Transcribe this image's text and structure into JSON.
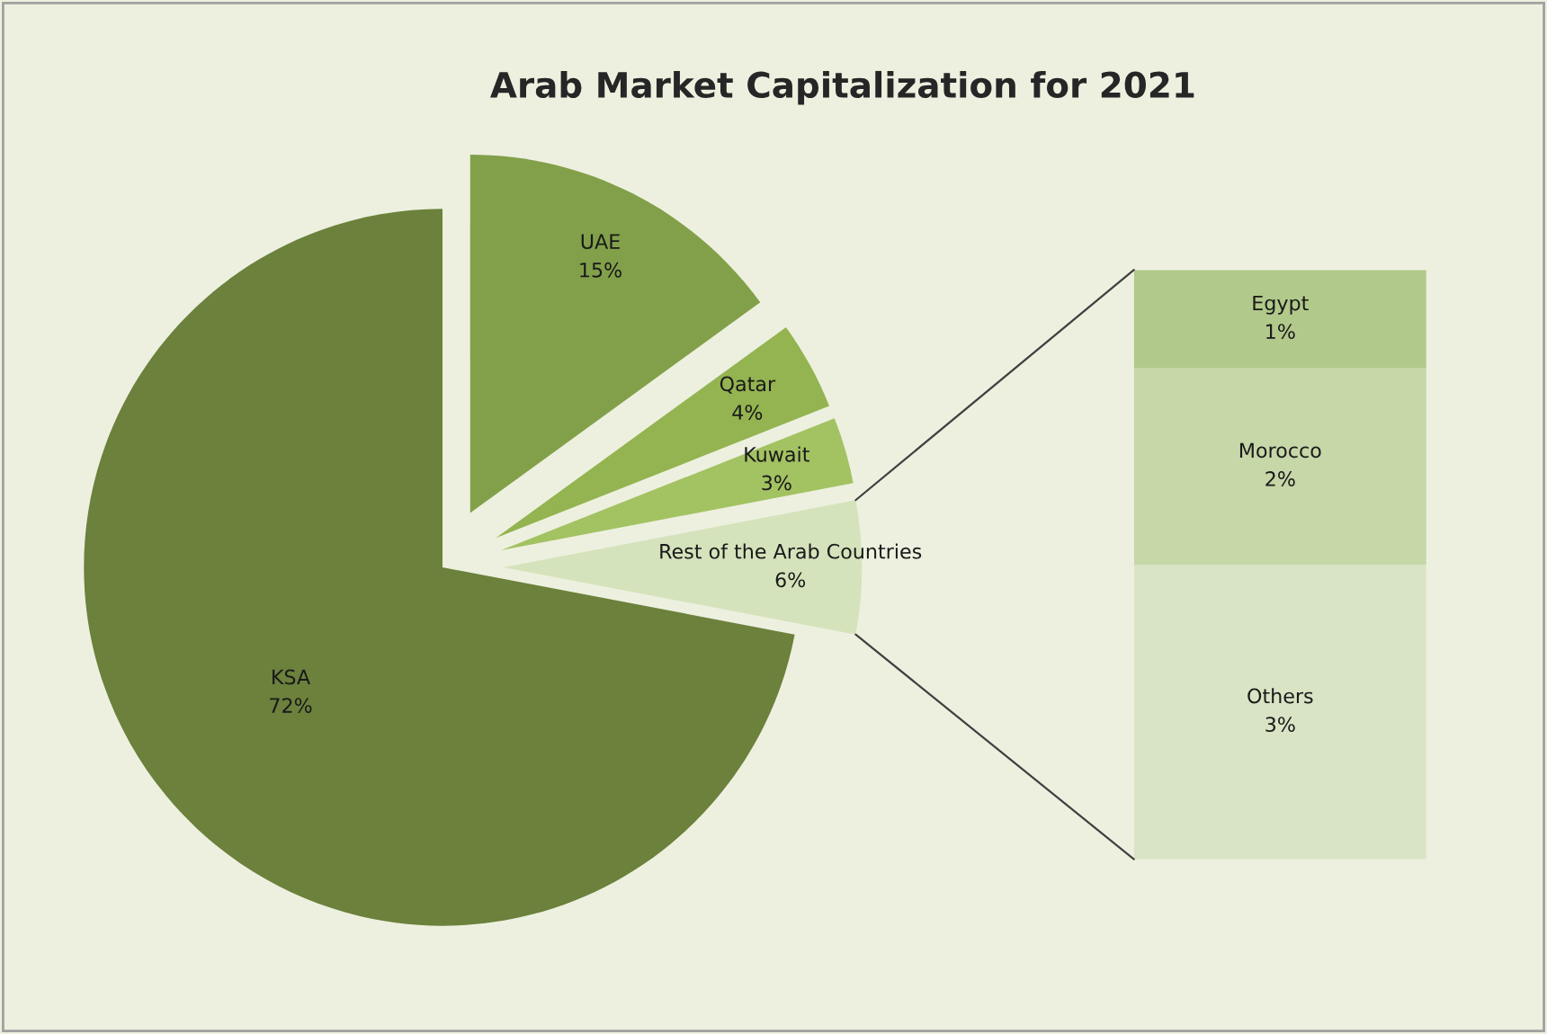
{
  "chart_data": [
    {
      "type": "pie",
      "title": "Arab Market Capitalization for 2021",
      "categories": [
        "UAE",
        "Qatar",
        "Kuwait",
        "Rest of the Arab Countries",
        "KSA"
      ],
      "values": [
        15,
        4,
        3,
        6,
        72
      ],
      "value_labels": [
        "15%",
        "4%",
        "3%",
        "6%",
        "72%"
      ],
      "colors": [
        "#82a04a",
        "#93b450",
        "#a3c262",
        "#d5e3bc",
        "#6b813c"
      ]
    },
    {
      "type": "bar",
      "stacked": true,
      "categories": [
        null
      ],
      "series": [
        {
          "name": "Others",
          "color": "#d9e4c5",
          "values": [
            3
          ],
          "value_labels": [
            "3%"
          ]
        },
        {
          "name": "Morocco",
          "color": "#c6d7a8",
          "values": [
            2
          ],
          "value_labels": [
            "2%"
          ]
        },
        {
          "name": "Egypt",
          "color": "#b1c98a",
          "values": [
            1
          ],
          "value_labels": [
            "1%"
          ]
        }
      ]
    }
  ]
}
